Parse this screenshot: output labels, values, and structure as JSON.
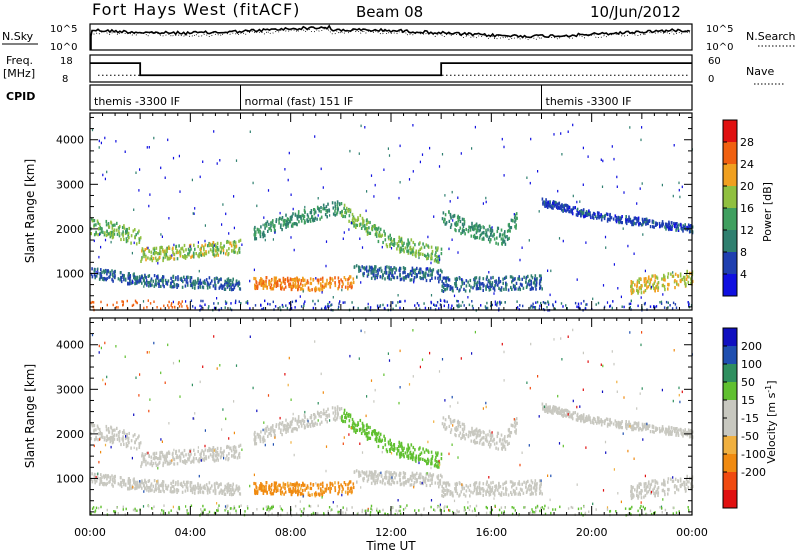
{
  "header": {
    "station": "Fort Hays West (fitACF)",
    "beam": "Beam 08",
    "date": "10/Jun/2012"
  },
  "noise_panel": {
    "left_label": "N.Sky",
    "right_label": "N.Search",
    "tick_top": "10^5",
    "tick_bottom": "10^0"
  },
  "freq_panel": {
    "label_line1": "Freq.",
    "label_line2": "[MHz]",
    "tick_top": "18",
    "tick_bottom": "8",
    "right_label": "Nave",
    "right_tick_top": "60",
    "right_tick_bottom": "0",
    "freq_steps": [
      {
        "start_hour": 0.0,
        "end_hour": 2.0,
        "mhz": 15.0
      },
      {
        "start_hour": 2.0,
        "end_hour": 14.0,
        "mhz": 10.5
      },
      {
        "start_hour": 14.0,
        "end_hour": 24.0,
        "mhz": 15.0
      }
    ],
    "nave_level": 15
  },
  "cpid_panel": {
    "label": "CPID",
    "segments": [
      {
        "start_hour": 0.0,
        "end_hour": 6.0,
        "name": "themis -3300 IF"
      },
      {
        "start_hour": 6.0,
        "end_hour": 18.0,
        "name": "normal (fast) 151 IF"
      },
      {
        "start_hour": 18.0,
        "end_hour": 24.0,
        "name": "themis -3300 IF"
      }
    ]
  },
  "colors": {
    "power_scale": [
      "#1010e0",
      "#1f3fb0",
      "#2f7f6f",
      "#3f9f5f",
      "#90c040",
      "#f0a020",
      "#f06010",
      "#e01010"
    ],
    "velocity_scale": [
      "#e01010",
      "#f04a10",
      "#f08a10",
      "#f0b040",
      "#c8c8c0",
      "#c8c8c0",
      "#60c030",
      "#2f8f5f",
      "#1f4fb0",
      "#1010c0"
    ]
  },
  "chart_data": [
    {
      "type": "heatmap",
      "name": "power",
      "xlabel": "",
      "ylabel": "Slant Range [km]",
      "xlim": [
        0,
        24
      ],
      "ylim": [
        180,
        4600
      ],
      "xticks": [
        "00:00",
        "04:00",
        "08:00",
        "12:00",
        "16:00",
        "20:00",
        "00:00"
      ],
      "yticks": [
        1000,
        2000,
        3000,
        4000
      ],
      "colorbar": {
        "label": "Power [dB]",
        "range": [
          0,
          32
        ],
        "ticks": [
          4,
          8,
          12,
          16,
          20,
          24,
          28
        ]
      },
      "bands": [
        {
          "x": [
            0.0,
            1.0,
            2.0
          ],
          "center_km": [
            2050,
            1950,
            1800
          ],
          "width_km": 260,
          "power_db": 16
        },
        {
          "x": [
            2.0,
            4.0,
            6.0
          ],
          "center_km": [
            1400,
            1500,
            1600
          ],
          "width_km": 220,
          "power_db": 18
        },
        {
          "x": [
            6.5,
            8.0,
            10.0
          ],
          "center_km": [
            1900,
            2200,
            2500
          ],
          "width_km": 220,
          "power_db": 12
        },
        {
          "x": [
            10.0,
            12.0,
            14.0
          ],
          "center_km": [
            2400,
            1700,
            1400
          ],
          "width_km": 250,
          "power_db": 16
        },
        {
          "x": [
            14.0,
            15.0,
            16.5,
            17.0
          ],
          "center_km": [
            2300,
            2000,
            1800,
            2200
          ],
          "width_km": 260,
          "power_db": 12
        },
        {
          "x": [
            18.0,
            20.0,
            24.0
          ],
          "center_km": [
            2600,
            2300,
            2000
          ],
          "width_km": 120,
          "power_db": 6
        },
        {
          "x": [
            0.0,
            2.0,
            4.0,
            6.0
          ],
          "center_km": [
            1000,
            850,
            800,
            750
          ],
          "width_km": 180,
          "power_db": 8
        },
        {
          "x": [
            6.5,
            9.0,
            10.5
          ],
          "center_km": [
            800,
            750,
            800
          ],
          "width_km": 200,
          "power_db": 24
        },
        {
          "x": [
            10.5,
            14.0
          ],
          "center_km": [
            1050,
            950
          ],
          "width_km": 200,
          "power_db": 8
        },
        {
          "x": [
            14.0,
            18.0
          ],
          "center_km": [
            750,
            800
          ],
          "width_km": 220,
          "power_db": 8
        },
        {
          "x": [
            21.5,
            24.0
          ],
          "center_km": [
            700,
            900
          ],
          "width_km": 250,
          "power_db": 20
        }
      ]
    },
    {
      "type": "heatmap",
      "name": "velocity",
      "xlabel": "Time UT",
      "ylabel": "Slant Range [km]",
      "xlim": [
        0,
        24
      ],
      "ylim": [
        180,
        4600
      ],
      "xticks": [
        "00:00",
        "04:00",
        "08:00",
        "12:00",
        "16:00",
        "20:00",
        "00:00"
      ],
      "yticks": [
        1000,
        2000,
        3000,
        4000
      ],
      "colorbar": {
        "label": "Velocity [m s^-1]",
        "ticks": [
          200,
          100,
          50,
          15,
          -15,
          -50,
          -100,
          -200
        ]
      },
      "bands": [
        {
          "x": [
            0.0,
            1.0,
            2.0
          ],
          "center_km": [
            2050,
            1950,
            1800
          ],
          "width_km": 260,
          "velocity": 0
        },
        {
          "x": [
            2.0,
            4.0,
            6.0
          ],
          "center_km": [
            1400,
            1500,
            1600
          ],
          "width_km": 220,
          "velocity": 0
        },
        {
          "x": [
            6.5,
            8.0,
            10.0
          ],
          "center_km": [
            1900,
            2200,
            2500
          ],
          "width_km": 220,
          "velocity": 0
        },
        {
          "x": [
            10.0,
            12.0,
            14.0
          ],
          "center_km": [
            2400,
            1700,
            1400
          ],
          "width_km": 250,
          "velocity": 30
        },
        {
          "x": [
            14.0,
            15.0,
            16.5,
            17.0
          ],
          "center_km": [
            2300,
            2000,
            1800,
            2200
          ],
          "width_km": 260,
          "velocity": 0
        },
        {
          "x": [
            18.0,
            20.0,
            24.0
          ],
          "center_km": [
            2600,
            2300,
            2000
          ],
          "width_km": 120,
          "velocity": 0
        },
        {
          "x": [
            0.0,
            2.0,
            4.0,
            6.0
          ],
          "center_km": [
            1000,
            850,
            800,
            750
          ],
          "width_km": 180,
          "velocity": 0
        },
        {
          "x": [
            6.5,
            9.0,
            10.5
          ],
          "center_km": [
            800,
            750,
            800
          ],
          "width_km": 200,
          "velocity": -60
        },
        {
          "x": [
            10.5,
            14.0
          ],
          "center_km": [
            1050,
            950
          ],
          "width_km": 200,
          "velocity": 0
        },
        {
          "x": [
            14.0,
            18.0
          ],
          "center_km": [
            750,
            800
          ],
          "width_km": 220,
          "velocity": 0
        },
        {
          "x": [
            21.5,
            24.0
          ],
          "center_km": [
            700,
            900
          ],
          "width_km": 250,
          "velocity": 0
        }
      ]
    }
  ]
}
